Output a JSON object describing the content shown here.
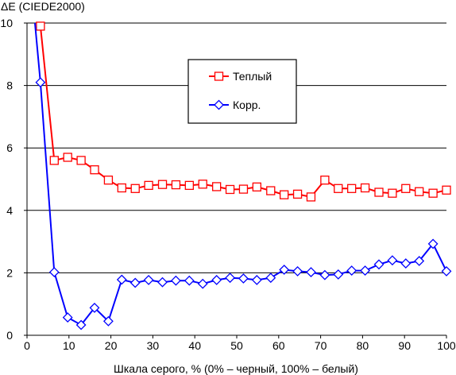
{
  "chart_data": {
    "type": "line",
    "title": "",
    "ylabel": "ΔE (CIEDE2000)",
    "xlabel": "Шкала серого, % (0% – черный, 100% – белый)",
    "xlim": [
      0,
      100
    ],
    "ylim": [
      0,
      10
    ],
    "xticks": [
      0,
      10,
      20,
      30,
      40,
      50,
      60,
      70,
      80,
      90,
      100
    ],
    "yticks": [
      0,
      2,
      4,
      6,
      8,
      10
    ],
    "grid": "horizontal",
    "legend_position": "top-center",
    "series": [
      {
        "name": "Теплый",
        "color": "#ff0000",
        "marker": "square",
        "x": [
          3.2,
          6.5,
          9.7,
          12.9,
          16.1,
          19.4,
          22.6,
          25.8,
          29.0,
          32.3,
          35.5,
          38.7,
          41.9,
          45.2,
          48.4,
          51.6,
          54.8,
          58.1,
          61.3,
          64.5,
          67.7,
          71.0,
          74.2,
          77.4,
          80.6,
          83.9,
          87.1,
          90.3,
          93.5,
          96.8,
          100
        ],
        "values": [
          9.9,
          5.6,
          5.7,
          5.6,
          5.3,
          4.97,
          4.72,
          4.7,
          4.8,
          4.83,
          4.82,
          4.8,
          4.84,
          4.76,
          4.67,
          4.68,
          4.75,
          4.63,
          4.5,
          4.52,
          4.43,
          4.97,
          4.7,
          4.7,
          4.72,
          4.58,
          4.55,
          4.7,
          4.6,
          4.55,
          4.65
        ]
      },
      {
        "name": "Корр.",
        "color": "#0000ff",
        "marker": "diamond",
        "x": [
          3.2,
          6.5,
          9.7,
          12.9,
          16.1,
          19.4,
          22.6,
          25.8,
          29.0,
          32.3,
          35.5,
          38.7,
          41.9,
          45.2,
          48.4,
          51.6,
          54.8,
          58.1,
          61.3,
          64.5,
          67.7,
          71.0,
          74.2,
          77.4,
          80.6,
          83.9,
          87.1,
          90.3,
          93.5,
          96.8,
          100
        ],
        "values": [
          8.1,
          2.02,
          0.57,
          0.33,
          0.88,
          0.45,
          1.78,
          1.68,
          1.77,
          1.7,
          1.75,
          1.75,
          1.65,
          1.77,
          1.84,
          1.82,
          1.77,
          1.84,
          2.1,
          2.05,
          2.02,
          1.93,
          1.95,
          2.07,
          2.07,
          2.27,
          2.4,
          2.3,
          2.38,
          2.93,
          2.05
        ]
      }
    ]
  }
}
